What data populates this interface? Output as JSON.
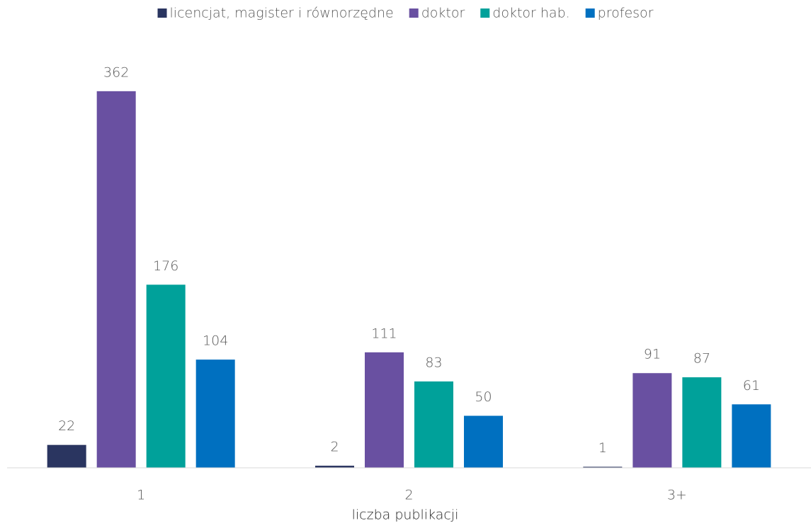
{
  "chart_data": {
    "type": "bar",
    "x_label": "liczba publikacji",
    "categories": [
      "1",
      "2",
      "3+"
    ],
    "series": [
      {
        "name": "licencjat, magister i równorzędne",
        "color": "#2a3560",
        "values": [
          22,
          2,
          1
        ]
      },
      {
        "name": "doktor",
        "color": "#6950a1",
        "values": [
          362,
          111,
          91
        ]
      },
      {
        "name": "doktor hab.",
        "color": "#00a19a",
        "values": [
          176,
          83,
          87
        ]
      },
      {
        "name": "profesor",
        "color": "#0070c0",
        "values": [
          104,
          50,
          61
        ]
      }
    ],
    "ylim": [
      0,
      400
    ],
    "legend": "top",
    "data_labels": true
  }
}
